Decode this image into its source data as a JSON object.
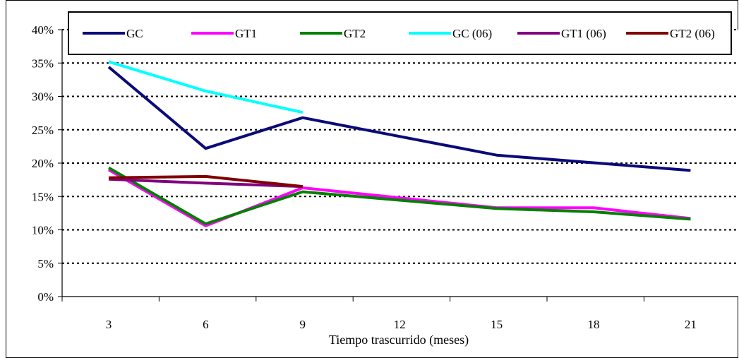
{
  "chart_data": {
    "type": "line",
    "title": "",
    "xlabel": "Tiempo trascurrido (meses)",
    "ylabel": "",
    "x": [
      3,
      6,
      9,
      12,
      15,
      18,
      21
    ],
    "x_tick_labels": [
      "3",
      "6",
      "9",
      "12",
      "15",
      "18",
      "21"
    ],
    "ylim": [
      0,
      0.4
    ],
    "y_ticks": [
      0,
      0.05,
      0.1,
      0.15,
      0.2,
      0.25,
      0.3,
      0.35,
      0.4
    ],
    "y_tick_labels": [
      "0%",
      "5%",
      "10%",
      "15%",
      "20%",
      "25%",
      "30%",
      "35%",
      "40%"
    ],
    "grid": "horizontal dotted",
    "legend_position": "top",
    "series": [
      {
        "name": "GC",
        "color": "#0a0a78",
        "x": [
          3,
          6,
          9,
          15,
          21
        ],
        "values": [
          0.344,
          0.222,
          0.268,
          0.212,
          0.189
        ]
      },
      {
        "name": "GT1",
        "color": "#ff00ff",
        "x": [
          3,
          6,
          9,
          15,
          18,
          21
        ],
        "values": [
          0.19,
          0.106,
          0.163,
          0.133,
          0.133,
          0.117
        ]
      },
      {
        "name": "GT2",
        "color": "#008000",
        "x": [
          3,
          6,
          9,
          15,
          18,
          21
        ],
        "values": [
          0.193,
          0.109,
          0.157,
          0.132,
          0.127,
          0.116
        ]
      },
      {
        "name": "GC (06)",
        "color": "#00ffff",
        "x": [
          3,
          6,
          9
        ],
        "values": [
          0.352,
          0.308,
          0.276
        ]
      },
      {
        "name": "GT1 (06)",
        "color": "#800080",
        "x": [
          3,
          6,
          9
        ],
        "values": [
          0.176,
          0.17,
          0.165
        ]
      },
      {
        "name": "GT2 (06)",
        "color": "#800000",
        "x": [
          3,
          6,
          9
        ],
        "values": [
          0.178,
          0.18,
          0.165
        ]
      }
    ]
  }
}
